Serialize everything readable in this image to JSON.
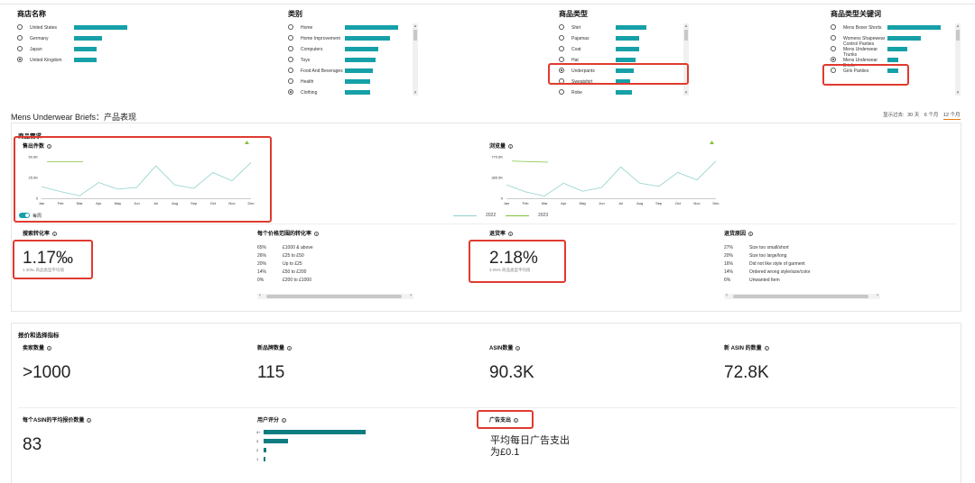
{
  "filters": [
    {
      "title": "商店名称",
      "options": [
        {
          "label": "United States",
          "selected": false,
          "level": 0.95
        },
        {
          "label": "Germany",
          "selected": false,
          "level": 0.5
        },
        {
          "label": "Japan",
          "selected": false,
          "level": 0.4
        },
        {
          "label": "United Kingdom",
          "selected": true,
          "level": 0.4
        }
      ]
    },
    {
      "title": "类别",
      "options": [
        {
          "label": "Home",
          "selected": false,
          "level": 0.95
        },
        {
          "label": "Home Improvement",
          "selected": false,
          "level": 0.8
        },
        {
          "label": "Computers",
          "selected": false,
          "level": 0.6
        },
        {
          "label": "Toys",
          "selected": false,
          "level": 0.55
        },
        {
          "label": "Food And Beverages",
          "selected": false,
          "level": 0.5
        },
        {
          "label": "Health",
          "selected": false,
          "level": 0.45
        },
        {
          "label": "Clothing",
          "selected": true,
          "level": 0.45
        }
      ]
    },
    {
      "title": "商品类型",
      "options": [
        {
          "label": "Shirt",
          "selected": false,
          "level": 0.85
        },
        {
          "label": "Pajamas",
          "selected": false,
          "level": 0.65
        },
        {
          "label": "Coat",
          "selected": false,
          "level": 0.65
        },
        {
          "label": "Hat",
          "selected": false,
          "level": 0.55
        },
        {
          "label": "Underpants",
          "selected": true,
          "level": 0.5
        },
        {
          "label": "Sweatshirt",
          "selected": false,
          "level": 0.4
        },
        {
          "label": "Robe",
          "selected": false,
          "level": 0.45
        }
      ]
    },
    {
      "title": "商品类型关键词",
      "options": [
        {
          "label": "Mens Boxer Shorts",
          "selected": false,
          "level": 0.95
        },
        {
          "label": "Womens Shapewear Control Panties",
          "selected": false,
          "level": 0.6
        },
        {
          "label": "Mens Underwear Trunks",
          "selected": false,
          "level": 0.35
        },
        {
          "label": "Mens Underwear Briefs",
          "selected": true,
          "level": 0.2
        },
        {
          "label": "Girls Panties",
          "selected": false,
          "level": 0.2
        }
      ]
    }
  ],
  "section_title": "Mens Underwear Briefs：产品表现",
  "range": {
    "prefix": "显示过去:",
    "options": [
      "30 天",
      "6 个月",
      "12 个月"
    ],
    "active": "12 个月"
  },
  "demand": {
    "title": "商品需求",
    "toggle_label": "每周",
    "legend": [
      "2022",
      "2023"
    ]
  },
  "colors": {
    "line2022": "#8fd1cc",
    "line2023": "#7fc63c",
    "accent": "#16a0a8",
    "highlight": "#e03a2f"
  },
  "chart_data": [
    {
      "type": "line",
      "title": "售出件数",
      "x": [
        "Jan",
        "Feb",
        "Mar",
        "Apr",
        "May",
        "Jun",
        "Jul",
        "Aug",
        "Sep",
        "Oct",
        "Nov",
        "Dec"
      ],
      "ylim": [
        0,
        50000
      ],
      "yticks": [
        "0",
        "25.5K",
        "50.6K"
      ],
      "series": [
        {
          "name": "2022",
          "values": [
            14000,
            8000,
            3000,
            19000,
            11000,
            13000,
            39000,
            16000,
            12000,
            31000,
            21000,
            43000
          ]
        },
        {
          "name": "2023",
          "values": [
            44000,
            44000,
            44000,
            null,
            null,
            null,
            null,
            null,
            null,
            null,
            null,
            null
          ]
        }
      ]
    },
    {
      "type": "line",
      "title": "浏览量",
      "x": [
        "Jan",
        "Feb",
        "Mar",
        "Apr",
        "May",
        "Jun",
        "Jul",
        "Aug",
        "Sep",
        "Oct",
        "Nov",
        "Dec"
      ],
      "ylim": [
        0,
        770000
      ],
      "yticks": [
        "0",
        "385.5K",
        "770.6K"
      ],
      "series": [
        {
          "name": "2022",
          "values": [
            250000,
            120000,
            40000,
            280000,
            130000,
            200000,
            580000,
            280000,
            220000,
            480000,
            340000,
            690000
          ]
        },
        {
          "name": "2023",
          "values": [
            690000,
            680000,
            670000,
            null,
            null,
            null,
            null,
            null,
            null,
            null,
            null,
            null
          ]
        }
      ]
    }
  ],
  "metrics_row1": {
    "search_conv": {
      "title": "搜索转化率",
      "value": "1.17‰",
      "sub": "1.30‰ 商品类型平均值"
    },
    "price_conv": {
      "title": "每个价格范围的转化率",
      "rows": [
        {
          "pct": "65%",
          "label": "£1000 & above"
        },
        {
          "pct": "26%",
          "label": "£25 to £50"
        },
        {
          "pct": "20%",
          "label": "Up to £25"
        },
        {
          "pct": "14%",
          "label": "£50 to £200"
        },
        {
          "pct": "0%",
          "label": "£200 to £1000"
        }
      ]
    },
    "return_rate": {
      "title": "退货率",
      "value": "2.18%",
      "sub": "3.05% 商品类型平均值"
    },
    "return_reasons": {
      "title": "退货原因",
      "rows": [
        {
          "pct": "27%",
          "label": "Size too small/short"
        },
        {
          "pct": "20%",
          "label": "Size too large/long"
        },
        {
          "pct": "16%",
          "label": "Did not like style of garment"
        },
        {
          "pct": "14%",
          "label": "Ordered wrong style/size/color"
        },
        {
          "pct": "6%",
          "label": "Unwanted Item"
        }
      ]
    }
  },
  "pricing": {
    "title": "报价和选择指标",
    "sellers": {
      "title": "卖家数量",
      "value": ">1000"
    },
    "new_brands": {
      "title": "新品牌数量",
      "value": "115"
    },
    "asins": {
      "title": "ASIN数量",
      "value": "90.3K"
    },
    "new_asins": {
      "title": "新 ASIN 的数量",
      "value": "72.8K"
    },
    "offers": {
      "title": "每个ASIN的平均报价数量",
      "value": "83"
    },
    "rating": {
      "title": "用户评分",
      "bars": [
        {
          "label": "4+",
          "share": 1.0
        },
        {
          "label": "3",
          "share": 0.24
        },
        {
          "label": "2",
          "share": 0.03
        },
        {
          "label": "1",
          "share": 0.02
        }
      ]
    },
    "ad_spend": {
      "title": "广告支出",
      "value_line1": "平均每日广告支出",
      "value_line2": "为£0.1"
    }
  }
}
